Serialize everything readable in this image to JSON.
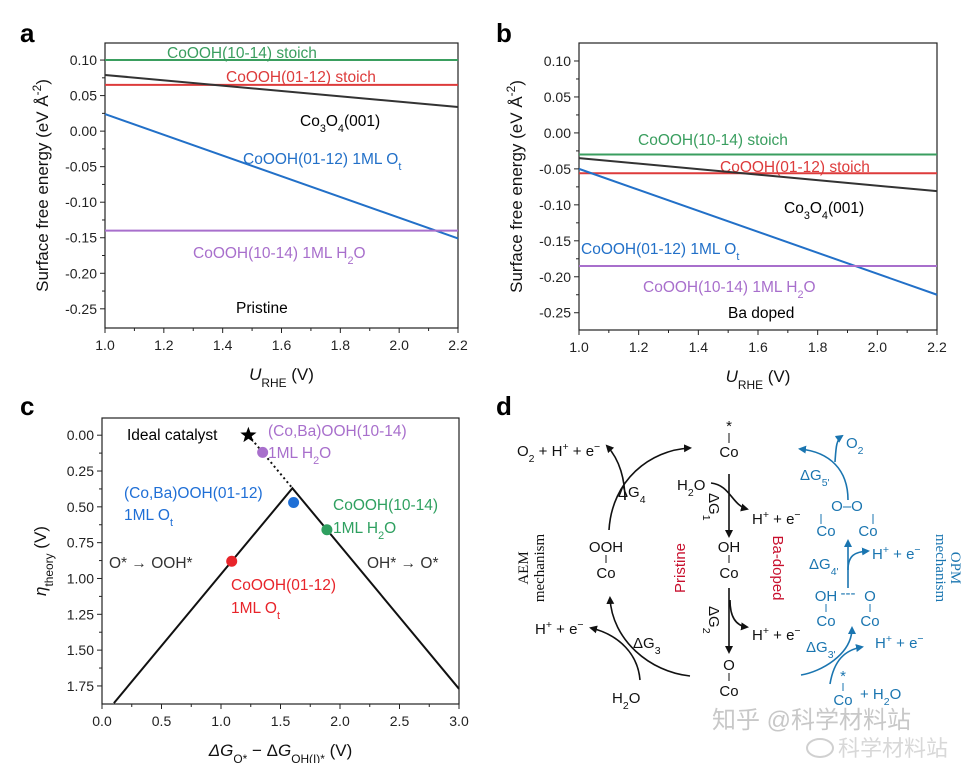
{
  "panel_letters": [
    "a",
    "b",
    "c",
    "d"
  ],
  "chart_data": [
    {
      "panel": "a",
      "type": "line",
      "annotation": "Pristine",
      "xlabel": [
        {
          "t": "U",
          "i": true
        },
        {
          "t": "RHE",
          "sub": true
        },
        {
          "t": " (V)"
        }
      ],
      "ylabel": [
        {
          "t": "Surface free energy (eV Å"
        },
        {
          "t": "-2",
          "sup": true
        },
        {
          "t": ")"
        }
      ],
      "xlim": [
        1.0,
        2.2
      ],
      "ylim": [
        -0.277,
        0.124
      ],
      "xticks": [
        "1.0",
        "1.2",
        "1.4",
        "1.6",
        "1.8",
        "2.0",
        "2.2"
      ],
      "yticks": [
        "0.10",
        "0.05",
        "0.00",
        "-0.05",
        "-0.10",
        "-0.15",
        "-0.20",
        "-0.25"
      ],
      "grid": false,
      "series": [
        {
          "name": [
            {
              "t": "CoOOH(10-14) stoich"
            }
          ],
          "color": "#3a9e5f",
          "x": [
            1.0,
            2.2
          ],
          "y": [
            0.1,
            0.1
          ]
        },
        {
          "name": [
            {
              "t": "CoOOH(01-12) stoich"
            }
          ],
          "color": "#dd3b3b",
          "x": [
            1.0,
            2.2
          ],
          "y": [
            0.065,
            0.065
          ]
        },
        {
          "name": [
            {
              "t": "Co"
            },
            {
              "t": "3",
              "sub": true
            },
            {
              "t": "O"
            },
            {
              "t": "4",
              "sub": true
            },
            {
              "t": "(001)"
            }
          ],
          "color": "#333333",
          "x": [
            1.0,
            2.2
          ],
          "y": [
            0.079,
            0.034
          ]
        },
        {
          "name": [
            {
              "t": "CoOOH(01-12) 1ML O"
            },
            {
              "t": "t",
              "sub": true
            }
          ],
          "color": "#2270c8",
          "x": [
            1.0,
            2.2
          ],
          "y": [
            0.024,
            -0.151
          ]
        },
        {
          "name": [
            {
              "t": "CoOOH(10-14) 1ML H"
            },
            {
              "t": "2",
              "sub": true
            },
            {
              "t": "O"
            }
          ],
          "color": "#a86fcc",
          "x": [
            1.0,
            2.2
          ],
          "y": [
            -0.14,
            -0.14
          ]
        }
      ]
    },
    {
      "panel": "b",
      "type": "line",
      "annotation": "Ba doped",
      "xlabel": [
        {
          "t": "U",
          "i": true
        },
        {
          "t": "RHE",
          "sub": true
        },
        {
          "t": " (V)"
        }
      ],
      "ylabel": [
        {
          "t": "Surface free energy (eV Å"
        },
        {
          "t": "-2",
          "sup": true
        },
        {
          "t": ")"
        }
      ],
      "xlim": [
        1.0,
        2.2
      ],
      "ylim": [
        -0.274,
        0.125
      ],
      "xticks": [
        "1.0",
        "1.2",
        "1.4",
        "1.6",
        "1.8",
        "2.0",
        "2.2"
      ],
      "yticks": [
        "0.10",
        "0.05",
        "0.00",
        "-0.05",
        "-0.10",
        "-0.15",
        "-0.20",
        "-0.25"
      ],
      "grid": false,
      "series": [
        {
          "name": [
            {
              "t": "CoOOH(10-14) stoich"
            }
          ],
          "color": "#3a9e5f",
          "x": [
            1.0,
            2.2
          ],
          "y": [
            -0.03,
            -0.03
          ]
        },
        {
          "name": [
            {
              "t": "CoOOH(01-12) stoich"
            }
          ],
          "color": "#dd3b3b",
          "x": [
            1.0,
            2.2
          ],
          "y": [
            -0.056,
            -0.056
          ]
        },
        {
          "name": [
            {
              "t": "Co"
            },
            {
              "t": "3",
              "sub": true
            },
            {
              "t": "O"
            },
            {
              "t": "4",
              "sub": true
            },
            {
              "t": "(001)"
            }
          ],
          "color": "#333333",
          "x": [
            1.0,
            2.2
          ],
          "y": [
            -0.035,
            -0.081
          ]
        },
        {
          "name": [
            {
              "t": "CoOOH(01-12) 1ML O"
            },
            {
              "t": "t",
              "sub": true
            }
          ],
          "color": "#2270c8",
          "x": [
            1.0,
            2.2
          ],
          "y": [
            -0.05,
            -0.225
          ]
        },
        {
          "name": [
            {
              "t": "CoOOH(10-14) 1ML H"
            },
            {
              "t": "2",
              "sub": true
            },
            {
              "t": "O"
            }
          ],
          "color": "#a86fcc",
          "x": [
            1.0,
            2.2
          ],
          "y": [
            -0.185,
            -0.185
          ]
        }
      ]
    },
    {
      "panel": "c",
      "type": "scatter",
      "xlabel": [
        {
          "t": "ΔG",
          "i": true
        },
        {
          "t": "O*",
          "sub": true
        },
        {
          "t": " − Δ"
        },
        {
          "t": "G",
          "i": true
        },
        {
          "t": "OH(I)*",
          "sub": true
        },
        {
          "t": " (V)"
        }
      ],
      "ylabel": [
        {
          "t": "η",
          "i": true
        },
        {
          "t": "theory",
          "sub": true
        },
        {
          "t": " (V)"
        }
      ],
      "xlim": [
        0.0,
        3.0
      ],
      "ylim": [
        -0.12,
        1.876
      ],
      "y_inverted": true,
      "xticks": [
        "0.0",
        "0.5",
        "1.0",
        "1.5",
        "2.0",
        "2.5",
        "3.0"
      ],
      "yticks": [
        "0.00",
        "0.25",
        "0.50",
        "0.75",
        "1.00",
        "1.25",
        "1.50",
        "1.75"
      ],
      "grid": false,
      "volcano_line": {
        "x": [
          0.1,
          1.6,
          3.0
        ],
        "y": [
          1.87,
          0.37,
          1.77
        ],
        "color": "#111111"
      },
      "ideal_line": {
        "x": [
          1.23,
          1.6
        ],
        "y": [
          0.0,
          0.37
        ],
        "style": "dotted",
        "color": "#111111"
      },
      "region_labels": [
        "O* → OOH*",
        "OH* → O*"
      ],
      "points": [
        {
          "marker": "star",
          "color": "#000000",
          "x": 1.23,
          "y": 0.0,
          "label": [
            [
              {
                "t": "Ideal catalyst"
              }
            ]
          ]
        },
        {
          "marker": "circle",
          "color": "#a86fcc",
          "x": 1.35,
          "y": 0.12,
          "label": [
            [
              {
                "t": "(Co,Ba)OOH(10-14)"
              }
            ],
            [
              {
                "t": "1ML H"
              },
              {
                "t": "2",
                "sub": true
              },
              {
                "t": "O"
              }
            ]
          ]
        },
        {
          "marker": "circle",
          "color": "#1f6fd6",
          "x": 1.61,
          "y": 0.47,
          "label": [
            [
              {
                "t": "(Co,Ba)OOH(01-12)"
              }
            ],
            [
              {
                "t": "1ML O"
              },
              {
                "t": "t",
                "sub": true
              }
            ]
          ]
        },
        {
          "marker": "circle",
          "color": "#2fa060",
          "x": 1.89,
          "y": 0.66,
          "label": [
            [
              {
                "t": "CoOOH(10-14)"
              }
            ],
            [
              {
                "t": "1ML H"
              },
              {
                "t": "2",
                "sub": true
              },
              {
                "t": "O"
              }
            ]
          ]
        },
        {
          "marker": "circle",
          "color": "#e8242a",
          "x": 1.09,
          "y": 0.88,
          "label": [
            [
              {
                "t": "CoOOH(01-12)"
              }
            ],
            [
              {
                "t": "1ML O"
              },
              {
                "t": "t",
                "sub": true
              }
            ]
          ]
        }
      ]
    }
  ],
  "diagram": {
    "colors": {
      "aem": "#111111",
      "opm": "#1a75b0",
      "label_red": "#c8102e"
    },
    "labels": [
      {
        "id": "o2-h-e-top-left",
        "color": "aem",
        "segs": [
          {
            "t": "O"
          },
          {
            "t": "2",
            "sub": true
          },
          {
            "t": " + H"
          },
          {
            "t": "+",
            "sup": true
          },
          {
            "t": " + e"
          },
          {
            "t": "−",
            "sup": true
          }
        ]
      },
      {
        "id": "dg4",
        "color": "aem",
        "segs": [
          {
            "t": "ΔG"
          },
          {
            "t": "4",
            "sub": true
          }
        ]
      },
      {
        "id": "co-star-mark-top",
        "color": "aem",
        "segs": [
          {
            "t": "*"
          }
        ]
      },
      {
        "id": "co-top",
        "color": "aem",
        "segs": [
          {
            "t": "Co"
          }
        ]
      },
      {
        "id": "h2o-top",
        "color": "aem",
        "segs": [
          {
            "t": "H"
          },
          {
            "t": "2",
            "sub": true
          },
          {
            "t": "O"
          }
        ]
      },
      {
        "id": "dg1",
        "color": "aem",
        "segs": [
          {
            "t": "ΔG"
          },
          {
            "t": "1",
            "sub": true
          }
        ]
      },
      {
        "id": "h-e-1",
        "color": "aem",
        "segs": [
          {
            "t": "H"
          },
          {
            "t": "+",
            "sup": true
          },
          {
            "t": " + e"
          },
          {
            "t": "−",
            "sup": true
          }
        ]
      },
      {
        "id": "ooh",
        "color": "aem",
        "segs": [
          {
            "t": "OOH"
          }
        ]
      },
      {
        "id": "co-ooh",
        "color": "aem",
        "segs": [
          {
            "t": "Co"
          }
        ]
      },
      {
        "id": "aem-line1",
        "color": "aem",
        "serif": true,
        "segs": [
          {
            "t": "AEM"
          }
        ]
      },
      {
        "id": "aem-line2",
        "color": "aem",
        "serif": true,
        "segs": [
          {
            "t": "mechanism"
          }
        ]
      },
      {
        "id": "pristine",
        "color": "label_red",
        "segs": [
          {
            "t": "Pristine"
          }
        ]
      },
      {
        "id": "oh",
        "color": "aem",
        "segs": [
          {
            "t": "OH"
          }
        ]
      },
      {
        "id": "co-oh",
        "color": "aem",
        "segs": [
          {
            "t": "Co"
          }
        ]
      },
      {
        "id": "ba-doped",
        "color": "label_red",
        "segs": [
          {
            "t": "Ba-doped"
          }
        ]
      },
      {
        "id": "dg2",
        "color": "aem",
        "segs": [
          {
            "t": "ΔG"
          },
          {
            "t": "2",
            "sub": true
          }
        ]
      },
      {
        "id": "h-e-2",
        "color": "aem",
        "segs": [
          {
            "t": "H"
          },
          {
            "t": "+",
            "sup": true
          },
          {
            "t": " + e"
          },
          {
            "t": "−",
            "sup": true
          }
        ]
      },
      {
        "id": "h-e-left",
        "color": "aem",
        "segs": [
          {
            "t": "H"
          },
          {
            "t": "+",
            "sup": true
          },
          {
            "t": " + e"
          },
          {
            "t": "−",
            "sup": true
          }
        ]
      },
      {
        "id": "dg3",
        "color": "aem",
        "segs": [
          {
            "t": "ΔG"
          },
          {
            "t": "3",
            "sub": true
          }
        ]
      },
      {
        "id": "h2o-bottom",
        "color": "aem",
        "segs": [
          {
            "t": "H"
          },
          {
            "t": "2",
            "sub": true
          },
          {
            "t": "O"
          }
        ]
      },
      {
        "id": "o",
        "color": "aem",
        "segs": [
          {
            "t": "O"
          }
        ]
      },
      {
        "id": "co-o",
        "color": "aem",
        "segs": [
          {
            "t": "Co"
          }
        ]
      },
      {
        "id": "o2-opm",
        "color": "opm",
        "segs": [
          {
            "t": "O"
          },
          {
            "t": "2",
            "sub": true
          }
        ]
      },
      {
        "id": "dg5p",
        "color": "opm",
        "segs": [
          {
            "t": "ΔG"
          },
          {
            "t": "5'",
            "sub": true
          }
        ]
      },
      {
        "id": "o-o",
        "color": "opm",
        "segs": [
          {
            "t": "O–O"
          }
        ]
      },
      {
        "id": "co-oo-left",
        "color": "opm",
        "segs": [
          {
            "t": "Co"
          }
        ]
      },
      {
        "id": "co-oo-right",
        "color": "opm",
        "segs": [
          {
            "t": "Co"
          }
        ]
      },
      {
        "id": "dg4p",
        "color": "opm",
        "segs": [
          {
            "t": "ΔG"
          },
          {
            "t": "4'",
            "sub": true
          }
        ]
      },
      {
        "id": "h-e-opm-1",
        "color": "opm",
        "segs": [
          {
            "t": "H"
          },
          {
            "t": "+",
            "sup": true
          },
          {
            "t": " + e"
          },
          {
            "t": "−",
            "sup": true
          }
        ]
      },
      {
        "id": "opm-line1",
        "color": "opm",
        "serif": true,
        "segs": [
          {
            "t": "OPM"
          }
        ]
      },
      {
        "id": "opm-line2",
        "color": "opm",
        "serif": true,
        "segs": [
          {
            "t": "mechanism"
          }
        ]
      },
      {
        "id": "oh-opm",
        "color": "opm",
        "segs": [
          {
            "t": "OH"
          }
        ]
      },
      {
        "id": "hbond",
        "color": "opm",
        "segs": [
          {
            "t": "---"
          }
        ]
      },
      {
        "id": "o-opm",
        "color": "opm",
        "segs": [
          {
            "t": "O"
          }
        ]
      },
      {
        "id": "co-ohopm-left",
        "color": "opm",
        "segs": [
          {
            "t": "Co"
          }
        ]
      },
      {
        "id": "co-ohopm-right",
        "color": "opm",
        "segs": [
          {
            "t": "Co"
          }
        ]
      },
      {
        "id": "dg3p",
        "color": "opm",
        "segs": [
          {
            "t": "ΔG"
          },
          {
            "t": "3'",
            "sub": true
          }
        ]
      },
      {
        "id": "h-e-opm-2",
        "color": "opm",
        "segs": [
          {
            "t": "H"
          },
          {
            "t": "+",
            "sup": true
          },
          {
            "t": " + e"
          },
          {
            "t": "−",
            "sup": true
          }
        ]
      },
      {
        "id": "co-star-mark-opm",
        "color": "opm",
        "segs": [
          {
            "t": "*"
          }
        ]
      },
      {
        "id": "co-opm-bottom",
        "color": "opm",
        "segs": [
          {
            "t": "Co"
          }
        ]
      },
      {
        "id": "plus-h2o-opm",
        "color": "opm",
        "segs": [
          {
            "t": "+ H"
          },
          {
            "t": "2",
            "sub": true
          },
          {
            "t": "O"
          }
        ]
      }
    ]
  },
  "watermark": {
    "line1": "知乎 @科学材料站",
    "line2": "科学材料站"
  }
}
